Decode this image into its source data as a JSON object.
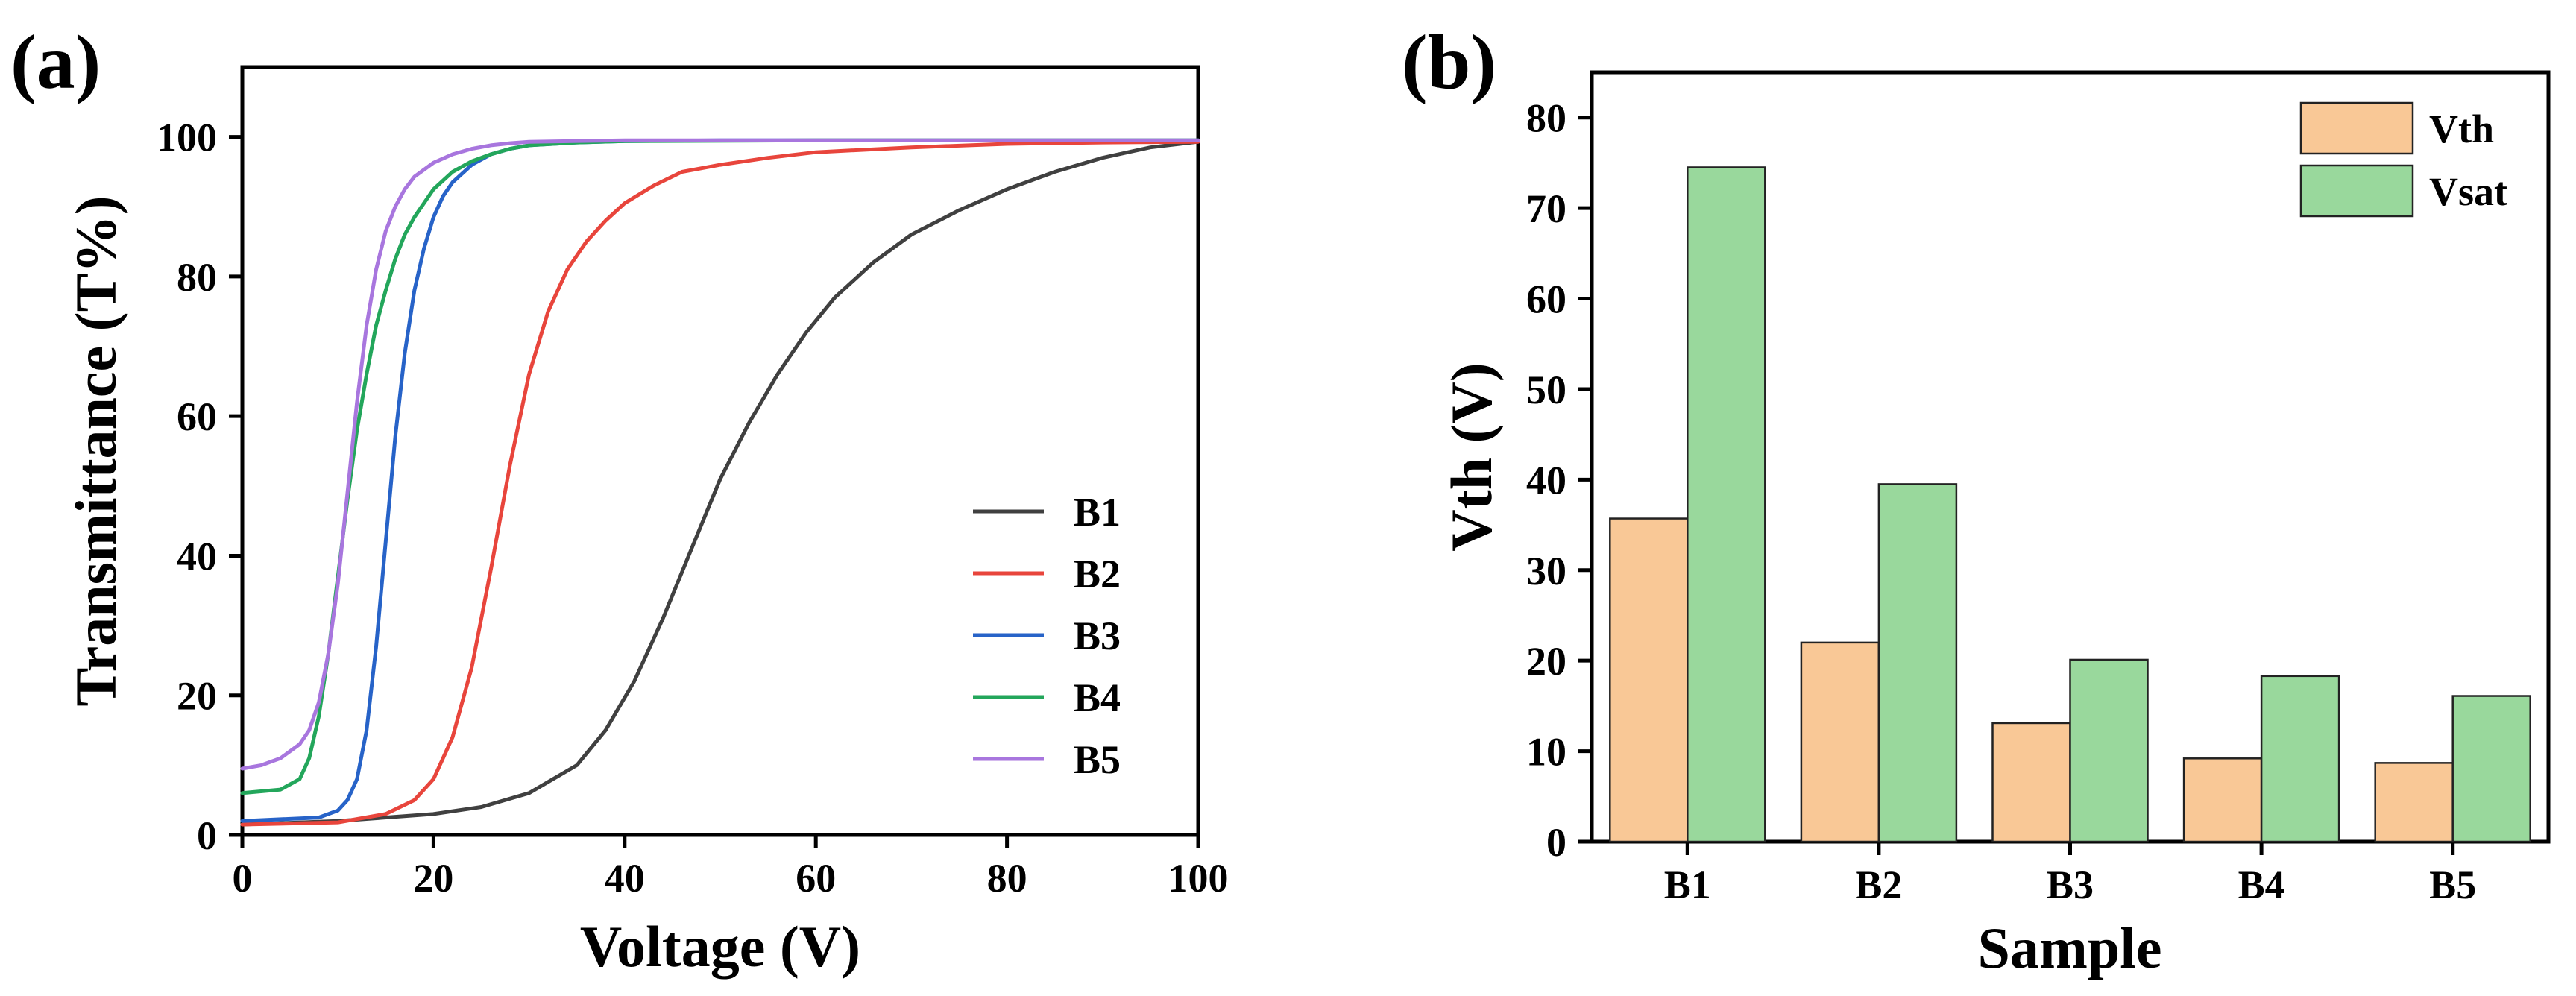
{
  "chart_data": [
    {
      "panel": "(a)",
      "type": "line",
      "xlabel": "Voltage (V)",
      "ylabel": "Transmittance (T%)",
      "xlim": [
        0,
        100
      ],
      "ylim": [
        0,
        110
      ],
      "xticks": [
        0,
        20,
        40,
        60,
        80,
        100
      ],
      "yticks": [
        0,
        20,
        40,
        60,
        80,
        100
      ],
      "legend_position": "bottom-right",
      "series": [
        {
          "name": "B1",
          "color": "#404040",
          "x": [
            0,
            10,
            20,
            25,
            30,
            35,
            38,
            41,
            44,
            47,
            50,
            53,
            56,
            59,
            62,
            66,
            70,
            75,
            80,
            85,
            90,
            95,
            100
          ],
          "y": [
            1.5,
            2,
            3,
            4,
            6,
            10,
            15,
            22,
            31,
            41,
            51,
            59,
            66,
            72,
            77,
            82,
            86,
            89.5,
            92.5,
            95,
            97,
            98.5,
            99.3
          ]
        },
        {
          "name": "B2",
          "color": "#e8453c",
          "x": [
            0,
            10,
            15,
            18,
            20,
            22,
            24,
            26,
            28,
            30,
            32,
            34,
            36,
            38,
            40,
            43,
            46,
            50,
            55,
            60,
            70,
            80,
            90,
            100
          ],
          "y": [
            1.5,
            1.8,
            3,
            5,
            8,
            14,
            24,
            38,
            53,
            66,
            75,
            81,
            85,
            88,
            90.5,
            93,
            95,
            96,
            97,
            97.8,
            98.5,
            99,
            99.2,
            99.3
          ]
        },
        {
          "name": "B3",
          "color": "#2763c8",
          "x": [
            0,
            8,
            10,
            11,
            12,
            13,
            14,
            15,
            16,
            17,
            18,
            19,
            20,
            21,
            22,
            24,
            26,
            28,
            30,
            35,
            40,
            50,
            60,
            80,
            100
          ],
          "y": [
            2,
            2.5,
            3.5,
            5,
            8,
            15,
            27,
            42,
            57,
            69,
            78,
            84,
            88.5,
            91.5,
            93.5,
            96,
            97.5,
            98.3,
            98.8,
            99.2,
            99.4,
            99.5,
            99.5,
            99.5,
            99.5
          ]
        },
        {
          "name": "B4",
          "color": "#23a65b",
          "x": [
            0,
            4,
            6,
            7,
            8,
            9,
            10,
            11,
            12,
            13,
            14,
            15,
            16,
            17,
            18,
            20,
            22,
            24,
            26,
            28,
            30,
            35,
            40,
            60,
            80,
            100
          ],
          "y": [
            6,
            6.5,
            8,
            11,
            17,
            26,
            37,
            48,
            58,
            66,
            73,
            78,
            82.5,
            86,
            88.5,
            92.5,
            95,
            96.5,
            97.5,
            98.3,
            98.8,
            99.2,
            99.4,
            99.5,
            99.5,
            99.5
          ]
        },
        {
          "name": "B5",
          "color": "#a876de",
          "x": [
            0,
            2,
            4,
            6,
            7,
            8,
            9,
            10,
            11,
            12,
            13,
            14,
            15,
            16,
            17,
            18,
            20,
            22,
            24,
            26,
            28,
            30,
            40,
            60,
            80,
            100
          ],
          "y": [
            9.5,
            10,
            11,
            13,
            15,
            19,
            26,
            36,
            49,
            62,
            73,
            81,
            86.5,
            90,
            92.5,
            94.3,
            96.3,
            97.5,
            98.3,
            98.8,
            99.1,
            99.3,
            99.5,
            99.5,
            99.5,
            99.5
          ]
        }
      ]
    },
    {
      "panel": "(b)",
      "type": "bar",
      "xlabel": "Sample",
      "ylabel": "Vth (V)",
      "ylim": [
        0,
        85
      ],
      "yticks": [
        0,
        10,
        20,
        30,
        40,
        50,
        60,
        70,
        80
      ],
      "categories": [
        "B1",
        "B2",
        "B3",
        "B4",
        "B5"
      ],
      "legend_position": "top-right",
      "series": [
        {
          "name": "Vth",
          "color": "#f9c896",
          "values": [
            35.7,
            22.0,
            13.1,
            9.2,
            8.7
          ]
        },
        {
          "name": "Vsat",
          "color": "#99d89c",
          "values": [
            74.5,
            39.5,
            20.1,
            18.3,
            16.1
          ]
        }
      ]
    }
  ]
}
